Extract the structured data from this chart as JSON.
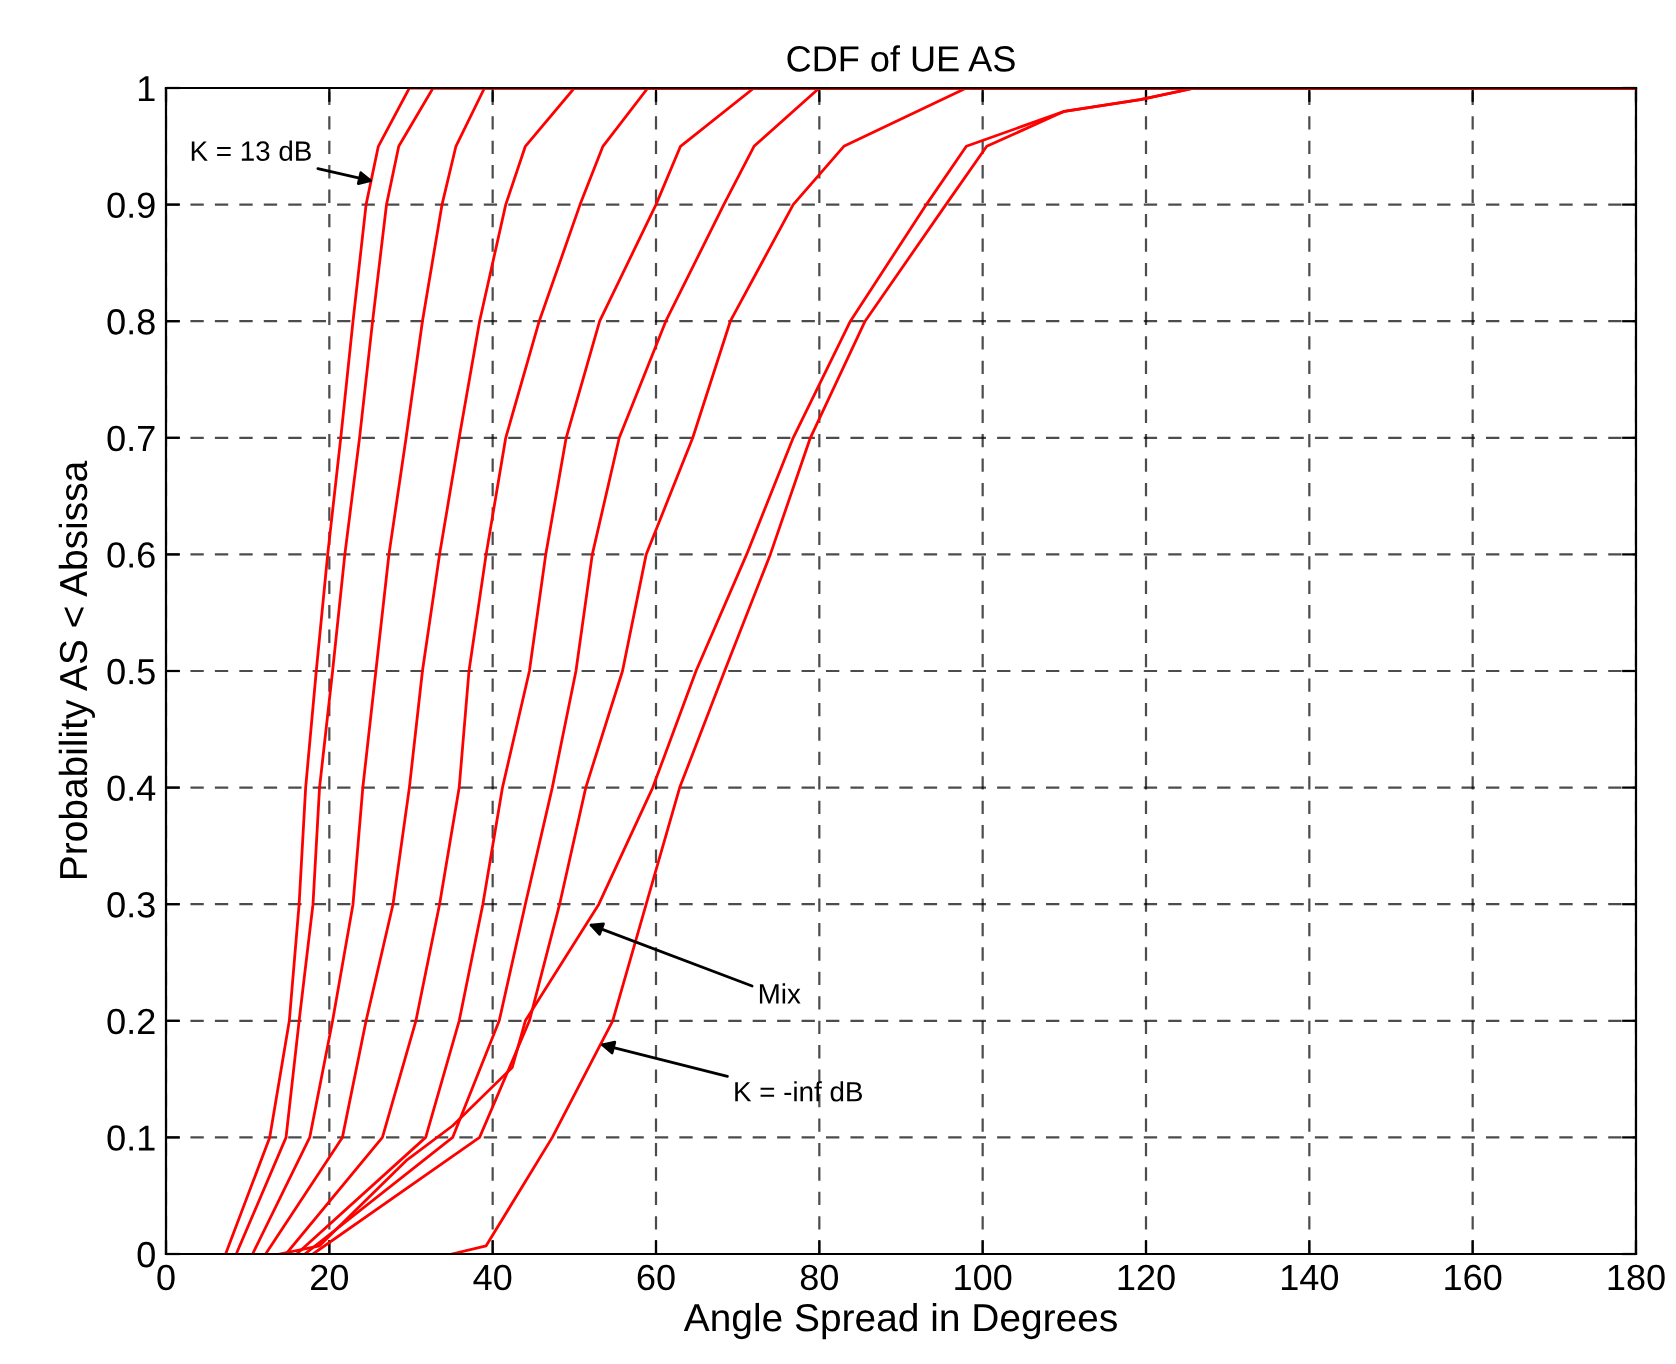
{
  "chart_data": {
    "type": "line",
    "title": "CDF of UE AS",
    "xlabel": "Angle Spread in Degrees",
    "ylabel": "Probability AS < Absissa",
    "xlim": [
      0,
      180
    ],
    "ylim": [
      0,
      1
    ],
    "xticks": [
      0,
      20,
      40,
      60,
      80,
      100,
      120,
      140,
      160,
      180
    ],
    "yticks": [
      0,
      0.1,
      0.2,
      0.3,
      0.4,
      0.5,
      0.6,
      0.7,
      0.8,
      0.9,
      1
    ],
    "grid": true,
    "line_style": "solid",
    "marker": "none",
    "series": [
      {
        "color": "#ff0000",
        "x": [
          7.3,
          12.7,
          15.1,
          16.3,
          17.1,
          18.4,
          19.8,
          21.4,
          22.9,
          24.5,
          26,
          29.8,
          180
        ],
        "values": [
          0,
          0.1,
          0.2,
          0.3,
          0.4,
          0.5,
          0.6,
          0.7,
          0.8,
          0.9,
          0.95,
          1,
          1
        ]
      },
      {
        "color": "#ff0000",
        "x": [
          8.6,
          14.7,
          16.3,
          18,
          18.8,
          20.4,
          21.9,
          23.7,
          25.3,
          27,
          28.5,
          32.7,
          180
        ],
        "values": [
          0,
          0.1,
          0.2,
          0.3,
          0.4,
          0.5,
          0.6,
          0.7,
          0.8,
          0.9,
          0.95,
          1,
          1
        ]
      },
      {
        "color": "#ff0000",
        "x": [
          10.6,
          17.6,
          20.4,
          22.9,
          24.1,
          25.7,
          27.3,
          29.4,
          31.4,
          33.8,
          35.5,
          39,
          180
        ],
        "values": [
          0,
          0.1,
          0.2,
          0.3,
          0.4,
          0.5,
          0.6,
          0.7,
          0.8,
          0.9,
          0.95,
          1,
          1
        ]
      },
      {
        "color": "#ff0000",
        "x": [
          12.2,
          21.6,
          24.5,
          27.8,
          29.8,
          31.4,
          33.5,
          35.9,
          38.4,
          41.6,
          44,
          50,
          180
        ],
        "values": [
          0,
          0.1,
          0.2,
          0.3,
          0.4,
          0.5,
          0.6,
          0.7,
          0.8,
          0.9,
          0.95,
          1,
          1
        ]
      },
      {
        "color": "#ff0000",
        "x": [
          14.7,
          26.5,
          30.6,
          33.5,
          35.9,
          37.1,
          39.2,
          41.6,
          45.7,
          50.7,
          53.5,
          59,
          180
        ],
        "values": [
          0,
          0.1,
          0.2,
          0.3,
          0.4,
          0.5,
          0.6,
          0.7,
          0.8,
          0.9,
          0.95,
          1,
          1
        ]
      },
      {
        "color": "#ff0000",
        "x": [
          16,
          31.8,
          35.9,
          38.8,
          41.2,
          44.5,
          46.5,
          49,
          53.1,
          60,
          63,
          72,
          180
        ],
        "values": [
          0,
          0.1,
          0.2,
          0.3,
          0.4,
          0.5,
          0.6,
          0.7,
          0.8,
          0.9,
          0.95,
          1,
          1
        ]
      },
      {
        "color": "#ff0000",
        "x": [
          17,
          35.1,
          40.8,
          44,
          47.3,
          50.2,
          52.2,
          55.5,
          61.2,
          68.3,
          72,
          80,
          180
        ],
        "values": [
          0,
          0.1,
          0.2,
          0.3,
          0.4,
          0.5,
          0.6,
          0.7,
          0.8,
          0.9,
          0.95,
          1,
          1
        ]
      },
      {
        "color": "#ff0000",
        "x": [
          18,
          38.4,
          44.5,
          48.2,
          51.4,
          55.9,
          58.8,
          64.5,
          69.1,
          76.8,
          83,
          98,
          180
        ],
        "values": [
          0,
          0.1,
          0.2,
          0.3,
          0.4,
          0.5,
          0.6,
          0.7,
          0.8,
          0.9,
          0.95,
          1,
          1
        ]
      },
      {
        "color": "#ff0000",
        "x": [
          13.9,
          18.8,
          29.4,
          35.1,
          42.4,
          44,
          53,
          59.6,
          64.9,
          71.1,
          76.8,
          83.8,
          93.1,
          98,
          110,
          119.3,
          126,
          180
        ],
        "values": [
          0,
          0.007,
          0.08,
          0.11,
          0.16,
          0.2,
          0.3,
          0.4,
          0.5,
          0.6,
          0.7,
          0.8,
          0.9,
          0.95,
          0.98,
          0.99,
          1,
          1
        ]
      },
      {
        "color": "#ff0000",
        "x": [
          35,
          39.2,
          47.3,
          54.7,
          58.8,
          62.9,
          68.4,
          74,
          78.9,
          85.6,
          95.5,
          100.5,
          110,
          119.3,
          126,
          180
        ],
        "values": [
          0,
          0.007,
          0.1,
          0.2,
          0.3,
          0.4,
          0.5,
          0.6,
          0.7,
          0.8,
          0.9,
          0.95,
          0.98,
          0.99,
          1,
          1
        ]
      }
    ],
    "annotations": [
      {
        "text": "K = 13 dB",
        "x": 25.4,
        "y": 0.92
      },
      {
        "text": "Mix",
        "x": 51.7,
        "y": 0.283
      },
      {
        "text": "K = -inf dB",
        "x": 53.1,
        "y": 0.18
      }
    ]
  }
}
